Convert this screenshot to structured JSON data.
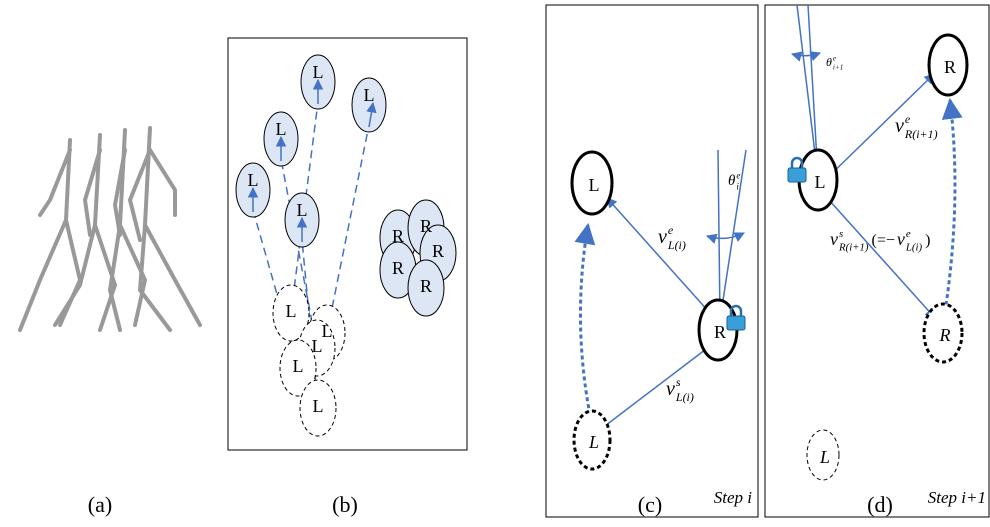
{
  "panels": [
    {
      "caption": "(a)"
    },
    {
      "caption": "(b)",
      "feet": [
        "L",
        "L",
        "L",
        "L",
        "L",
        "R",
        "R",
        "R",
        "R",
        "R",
        "L",
        "L",
        "L",
        "L",
        "L"
      ]
    },
    {
      "caption": "(c)",
      "feet": [
        "L",
        "R",
        "L"
      ],
      "step": "Step i",
      "labels": {
        "v_e": {
          "base": "v",
          "sup": "e",
          "sub": "L(i)"
        },
        "theta": {
          "base": "θ",
          "sup": "e",
          "sub": "i"
        },
        "v_s": {
          "base": "v",
          "sup": "s",
          "sub": "L(i)"
        }
      }
    },
    {
      "caption": "(d)",
      "feet": [
        "L",
        "R",
        "R",
        "L"
      ],
      "step": "Step i+1",
      "labels": {
        "theta": {
          "base": "θ",
          "sup": "e",
          "sub": "i+1"
        },
        "v_e": {
          "base": "v",
          "sup": "e",
          "sub": "R(i+1)"
        },
        "v_s": {
          "base": "v",
          "sup": "s",
          "sub": "R(i+1)"
        },
        "open": "(=−",
        "rhs": {
          "base": "v",
          "sup": "e",
          "sub": "L(i)"
        },
        "close": ")"
      }
    }
  ]
}
